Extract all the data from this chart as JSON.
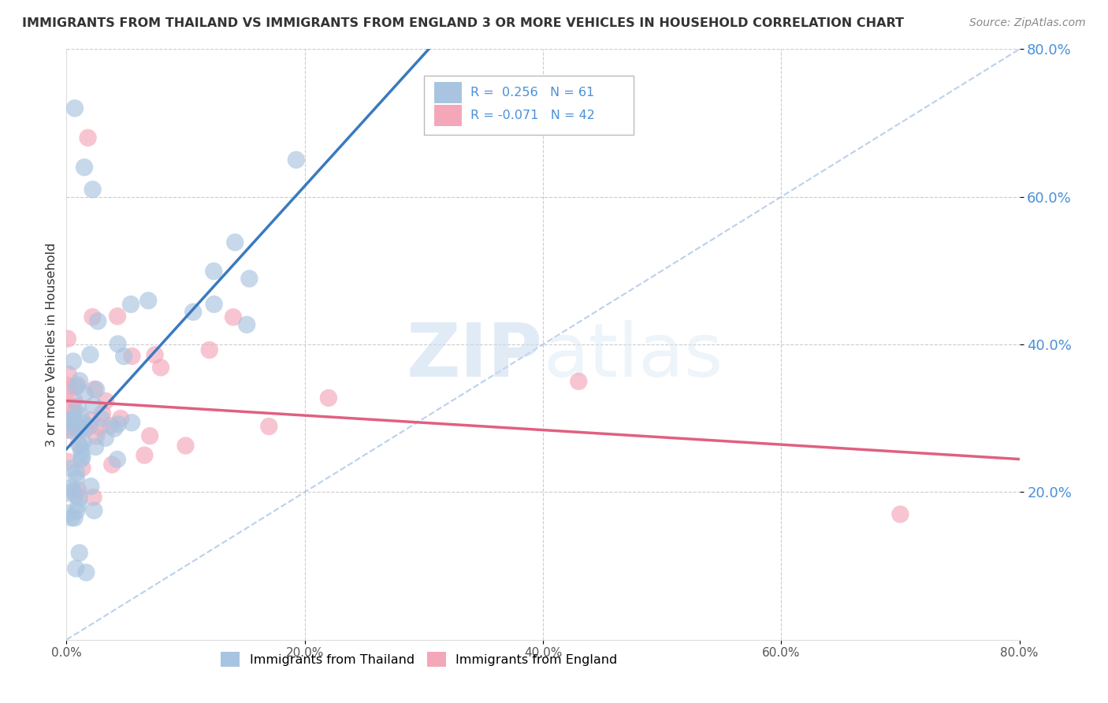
{
  "title": "IMMIGRANTS FROM THAILAND VS IMMIGRANTS FROM ENGLAND 3 OR MORE VEHICLES IN HOUSEHOLD CORRELATION CHART",
  "source": "Source: ZipAtlas.com",
  "ylabel": "3 or more Vehicles in Household",
  "xlim": [
    0.0,
    0.8
  ],
  "ylim": [
    0.0,
    0.8
  ],
  "xtick_labels": [
    "0.0%",
    "20.0%",
    "40.0%",
    "60.0%",
    "80.0%"
  ],
  "xtick_vals": [
    0.0,
    0.2,
    0.4,
    0.6,
    0.8
  ],
  "ytick_labels": [
    "20.0%",
    "40.0%",
    "60.0%",
    "80.0%"
  ],
  "ytick_vals": [
    0.2,
    0.4,
    0.6,
    0.8
  ],
  "legend_label1": "Immigrants from Thailand",
  "legend_label2": "Immigrants from England",
  "r1": "0.256",
  "n1": "61",
  "r2": "-0.071",
  "n2": "42",
  "color1": "#a8c4e0",
  "color2": "#f4a7b9",
  "line1_color": "#3a7abf",
  "line2_color": "#e06080",
  "diag_color": "#b0c8e8",
  "watermark_color": "#d0e4f0",
  "background_color": "#ffffff",
  "title_color": "#333333",
  "source_color": "#888888",
  "tick_color_y": "#4a90d9",
  "tick_color_x": "#555555",
  "grid_color": "#cccccc",
  "legend_text_color": "#4a90d9"
}
